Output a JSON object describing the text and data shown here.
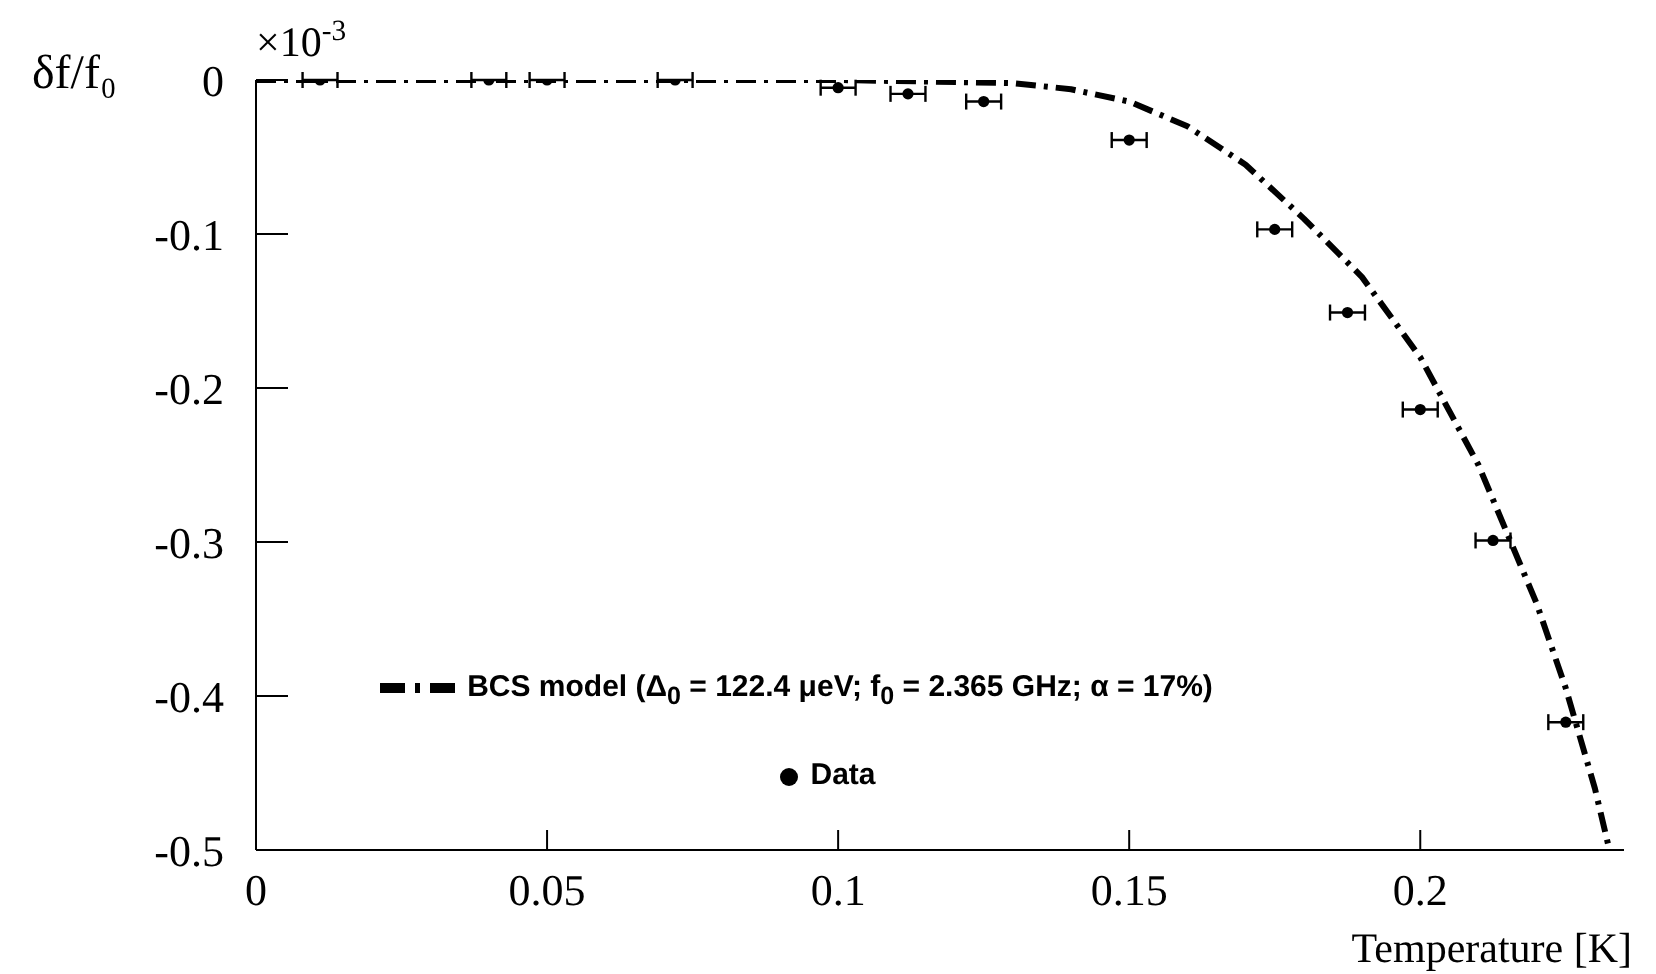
{
  "chart_data": {
    "type": "scatter",
    "xlabel": "Temperature [K]",
    "ylabel": "δf/f₀",
    "annotations": [
      "×10$^{-3}$"
    ],
    "xlim": [
      0,
      0.235
    ],
    "xticks": [
      0,
      0.05,
      0.1,
      0.15,
      0.2
    ],
    "ylim": [
      -0.5,
      0
    ],
    "yticks": [
      -0.5,
      -0.4,
      -0.3,
      -0.2,
      -0.1,
      0
    ],
    "legend": "bottom left",
    "grid": false,
    "series": [
      {
        "name": "BCS model (Δ$_{0}$ = 122.4 μeV; f$_{0}$ = 2.365 GHz; α = 17%)",
        "type": "line",
        "color": "#000000",
        "line_style": "dashed",
        "marker": "none",
        "x": [
          0,
          0.05,
          0.1,
          0.13,
          0.14,
          0.15,
          0.16,
          0.17,
          0.18,
          0.19,
          0.2,
          0.21,
          0.22,
          0.225,
          0.23,
          0.2325
        ],
        "values": [
          0,
          0,
          0,
          -0.002,
          -0.006,
          -0.014,
          -0.03,
          -0.055,
          -0.09,
          -0.128,
          -0.18,
          -0.25,
          -0.34,
          -0.395,
          -0.46,
          -0.5
        ]
      },
      {
        "name": "Data",
        "type": "scatter",
        "color": "#000000",
        "marker": "circle",
        "x": [
          0.011,
          0.04,
          0.05,
          0.072,
          0.1,
          0.112,
          0.125,
          0.15,
          0.175,
          0.1875,
          0.2,
          0.2125,
          0.225
        ],
        "values": [
          0,
          0,
          0,
          0,
          -0.005,
          -0.009,
          -0.014,
          -0.039,
          -0.097,
          -0.151,
          -0.214,
          -0.299,
          -0.417
        ],
        "xerrors": [
          0.003,
          0.003,
          0.003,
          0.003,
          0.003,
          0.003,
          0.003,
          0.003,
          0.003,
          0.003,
          0.003,
          0.003,
          0.003
        ]
      }
    ]
  }
}
